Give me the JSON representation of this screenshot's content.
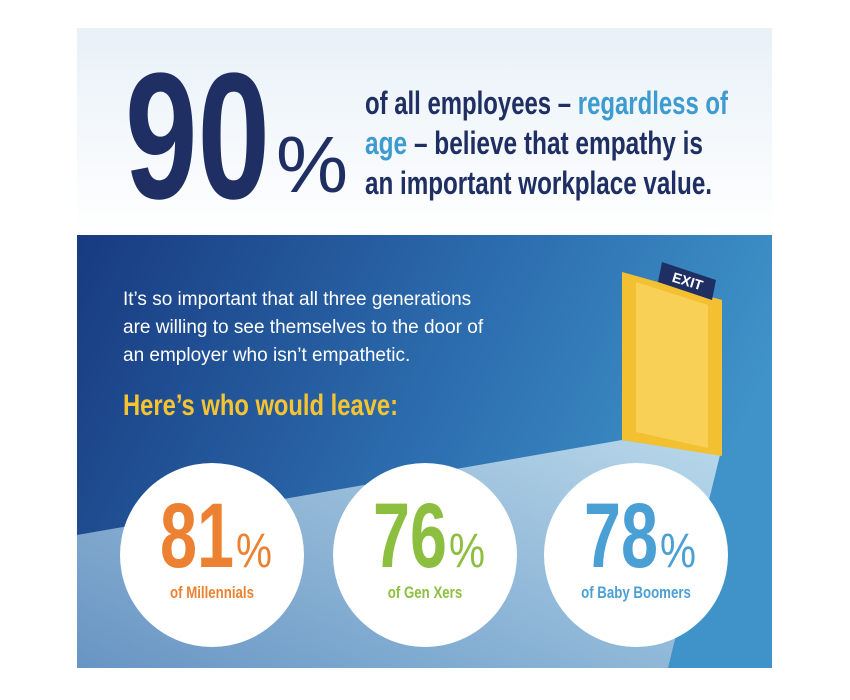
{
  "headline": {
    "number": "90",
    "percent": "%",
    "lines": [
      [
        {
          "text": "of all employees –",
          "color": "#1f2f63"
        },
        {
          "text": "regardless of",
          "color": "#3d9bd0"
        }
      ],
      [
        {
          "text": "age",
          "color": "#3d9bd0"
        },
        {
          "text": "– believe that empathy is",
          "color": "#1f2f63"
        }
      ],
      [
        {
          "text": "an important workplace value.",
          "color": "#1f2f63"
        }
      ]
    ]
  },
  "body": {
    "lines": [
      "It’s so important that all three generations",
      "are willing to see themselves to the door of",
      "an employer who isn’t empathetic."
    ],
    "subheading": "Here’s who would leave:"
  },
  "exit_sign": "EXIT",
  "stats": [
    {
      "number": 81,
      "percent": "%",
      "label": "of Millennials",
      "color": "#ec8131"
    },
    {
      "number": 76,
      "percent": "%",
      "label": "of Gen Xers",
      "color": "#8cbf3f"
    },
    {
      "number": 78,
      "percent": "%",
      "label": "of Baby Boomers",
      "color": "#4a9fd4"
    }
  ]
}
